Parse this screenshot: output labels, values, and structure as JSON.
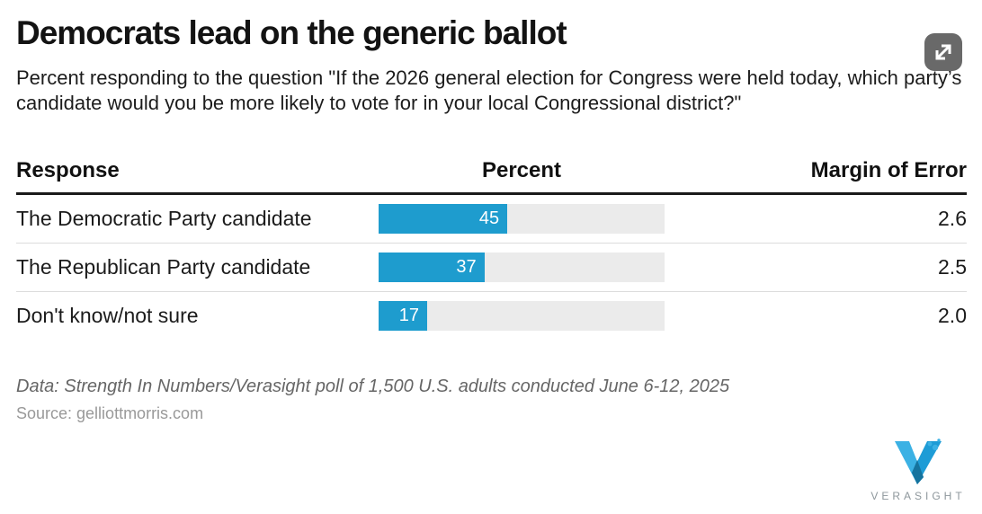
{
  "header": {
    "title": "Democrats lead on the generic ballot",
    "subtitle": "Percent responding to the question \"If the 2026 general election for Congress were held today, which party’s candidate would you be more likely to vote for in your local Congressional district?\""
  },
  "table": {
    "columns": {
      "response": "Response",
      "percent": "Percent",
      "moe": "Margin of Error"
    },
    "rows": [
      {
        "response": "The Democratic Party candidate",
        "percent_label": "45",
        "moe": "2.6"
      },
      {
        "response": "The Republican Party candidate",
        "percent_label": "37",
        "moe": "2.5"
      },
      {
        "response": "Don't know/not sure",
        "percent_label": "17",
        "moe": "2.0"
      }
    ]
  },
  "chart_data": {
    "type": "bar",
    "orientation": "horizontal",
    "title": "Democrats lead on the generic ballot",
    "subtitle": "Percent responding to the question \"If the 2026 general election for Congress were held today, which party’s candidate would you be more likely to vote for in your local Congressional district?\"",
    "categories": [
      "The Democratic Party candidate",
      "The Republican Party candidate",
      "Don't know/not sure"
    ],
    "values": [
      45,
      37,
      17
    ],
    "margins_of_error": [
      2.6,
      2.5,
      2.0
    ],
    "xlim": [
      0,
      100
    ],
    "value_label_position": "inside-end",
    "bar_color": "#1e9cce",
    "track_color": "#ebebeb",
    "grid": false,
    "legend": false
  },
  "footer": {
    "data_note": "Data: Strength In Numbers/Verasight poll of 1,500 U.S. adults conducted June 6-12, 2025",
    "source": "Source: gelliottmorris.com",
    "logo_text": "VERASIGHT"
  },
  "icons": {
    "expand": "expand-diagonal-arrows",
    "logo_mark": "verasight-v-mark"
  },
  "colors": {
    "accent_blue": "#1e9cce",
    "bar_track": "#ebebeb",
    "header_rule": "#1a1a1a",
    "row_separator": "#dcdcdc",
    "expand_button_bg": "#696969",
    "footer_text": "#666666",
    "source_text": "#999999",
    "logo_text": "#8e979c",
    "logo_light_blue": "#3bb1e4",
    "logo_mid_blue": "#1e9cd6",
    "logo_dark_blue": "#15739e"
  }
}
